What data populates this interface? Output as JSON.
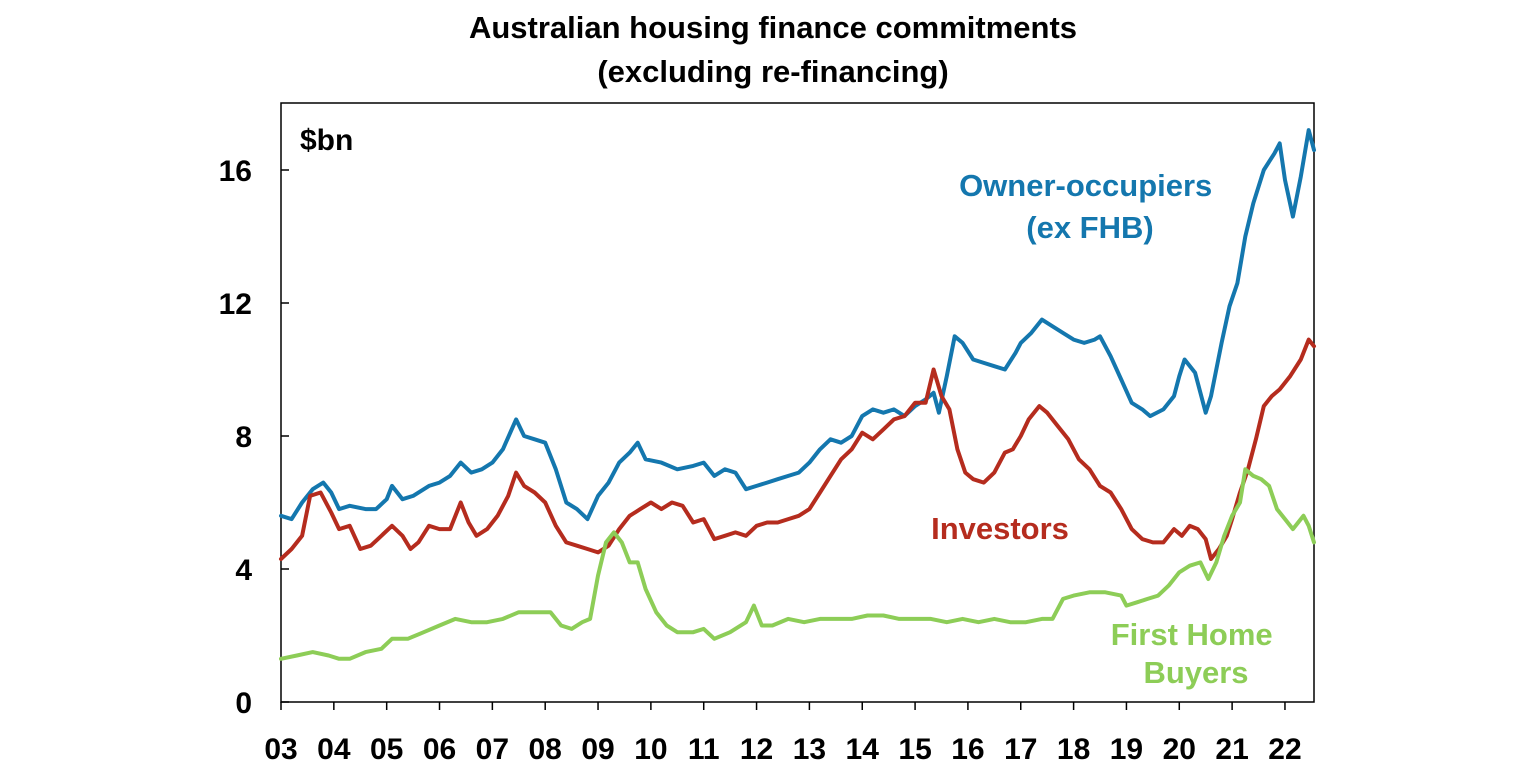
{
  "chart_data": {
    "type": "line",
    "title": "Australian housing finance commitments",
    "subtitle": "(excluding re-financing)",
    "ylabel": "$bn",
    "xlabel": "",
    "ylim": [
      0,
      18
    ],
    "yticks": [
      "0",
      "4",
      "8",
      "12",
      "16"
    ],
    "xticks": [
      "03",
      "04",
      "05",
      "06",
      "07",
      "08",
      "09",
      "10",
      "11",
      "12",
      "13",
      "14",
      "15",
      "16",
      "17",
      "18",
      "19",
      "20",
      "21",
      "22"
    ],
    "xlim": [
      2003.0,
      2022.5
    ],
    "grid": false,
    "legend": "inline labels",
    "series": [
      {
        "name": "Owner-occupiers (ex FHB)",
        "label_lines": [
          "Owner-occupiers",
          "(ex FHB)"
        ],
        "color": "#1477AE",
        "points": [
          [
            2003.0,
            5.6
          ],
          [
            2003.2,
            5.5
          ],
          [
            2003.4,
            6.0
          ],
          [
            2003.6,
            6.4
          ],
          [
            2003.8,
            6.6
          ],
          [
            2003.95,
            6.3
          ],
          [
            2004.1,
            5.8
          ],
          [
            2004.3,
            5.9
          ],
          [
            2004.6,
            5.8
          ],
          [
            2004.8,
            5.8
          ],
          [
            2005.0,
            6.1
          ],
          [
            2005.1,
            6.5
          ],
          [
            2005.3,
            6.1
          ],
          [
            2005.5,
            6.2
          ],
          [
            2005.8,
            6.5
          ],
          [
            2006.0,
            6.6
          ],
          [
            2006.2,
            6.8
          ],
          [
            2006.4,
            7.2
          ],
          [
            2006.6,
            6.9
          ],
          [
            2006.8,
            7.0
          ],
          [
            2007.0,
            7.2
          ],
          [
            2007.2,
            7.6
          ],
          [
            2007.45,
            8.5
          ],
          [
            2007.6,
            8.0
          ],
          [
            2007.8,
            7.9
          ],
          [
            2008.0,
            7.8
          ],
          [
            2008.2,
            7.0
          ],
          [
            2008.4,
            6.0
          ],
          [
            2008.6,
            5.8
          ],
          [
            2008.8,
            5.5
          ],
          [
            2009.0,
            6.2
          ],
          [
            2009.2,
            6.6
          ],
          [
            2009.4,
            7.2
          ],
          [
            2009.6,
            7.5
          ],
          [
            2009.75,
            7.8
          ],
          [
            2009.9,
            7.3
          ],
          [
            2010.2,
            7.2
          ],
          [
            2010.5,
            7.0
          ],
          [
            2010.8,
            7.1
          ],
          [
            2011.0,
            7.2
          ],
          [
            2011.2,
            6.8
          ],
          [
            2011.4,
            7.0
          ],
          [
            2011.6,
            6.9
          ],
          [
            2011.8,
            6.4
          ],
          [
            2012.0,
            6.5
          ],
          [
            2012.2,
            6.6
          ],
          [
            2012.4,
            6.7
          ],
          [
            2012.6,
            6.8
          ],
          [
            2012.8,
            6.9
          ],
          [
            2013.0,
            7.2
          ],
          [
            2013.2,
            7.6
          ],
          [
            2013.4,
            7.9
          ],
          [
            2013.6,
            7.8
          ],
          [
            2013.8,
            8.0
          ],
          [
            2014.0,
            8.6
          ],
          [
            2014.2,
            8.8
          ],
          [
            2014.4,
            8.7
          ],
          [
            2014.6,
            8.8
          ],
          [
            2014.8,
            8.6
          ],
          [
            2015.0,
            8.9
          ],
          [
            2015.2,
            9.1
          ],
          [
            2015.35,
            9.3
          ],
          [
            2015.45,
            8.7
          ],
          [
            2015.6,
            9.8
          ],
          [
            2015.75,
            11.0
          ],
          [
            2015.9,
            10.8
          ],
          [
            2016.1,
            10.3
          ],
          [
            2016.3,
            10.2
          ],
          [
            2016.5,
            10.1
          ],
          [
            2016.7,
            10.0
          ],
          [
            2016.9,
            10.5
          ],
          [
            2017.0,
            10.8
          ],
          [
            2017.2,
            11.1
          ],
          [
            2017.4,
            11.5
          ],
          [
            2017.6,
            11.3
          ],
          [
            2017.8,
            11.1
          ],
          [
            2018.0,
            10.9
          ],
          [
            2018.2,
            10.8
          ],
          [
            2018.4,
            10.9
          ],
          [
            2018.5,
            11.0
          ],
          [
            2018.7,
            10.4
          ],
          [
            2018.9,
            9.7
          ],
          [
            2019.1,
            9.0
          ],
          [
            2019.3,
            8.8
          ],
          [
            2019.45,
            8.6
          ],
          [
            2019.7,
            8.8
          ],
          [
            2019.9,
            9.2
          ],
          [
            2020.0,
            9.8
          ],
          [
            2020.1,
            10.3
          ],
          [
            2020.3,
            9.9
          ],
          [
            2020.5,
            8.7
          ],
          [
            2020.6,
            9.2
          ],
          [
            2020.8,
            10.8
          ],
          [
            2020.95,
            11.9
          ],
          [
            2021.1,
            12.6
          ],
          [
            2021.25,
            14.0
          ],
          [
            2021.4,
            15.0
          ],
          [
            2021.6,
            16.0
          ],
          [
            2021.8,
            16.5
          ],
          [
            2021.9,
            16.8
          ],
          [
            2022.0,
            15.7
          ],
          [
            2022.15,
            14.6
          ],
          [
            2022.3,
            15.8
          ],
          [
            2022.45,
            17.2
          ],
          [
            2022.55,
            16.6
          ]
        ]
      },
      {
        "name": "Investors",
        "label_lines": [
          "Investors"
        ],
        "color": "#B52C1E",
        "points": [
          [
            2003.0,
            4.3
          ],
          [
            2003.2,
            4.6
          ],
          [
            2003.4,
            5.0
          ],
          [
            2003.55,
            6.2
          ],
          [
            2003.75,
            6.3
          ],
          [
            2003.95,
            5.7
          ],
          [
            2004.1,
            5.2
          ],
          [
            2004.3,
            5.3
          ],
          [
            2004.5,
            4.6
          ],
          [
            2004.7,
            4.7
          ],
          [
            2004.9,
            5.0
          ],
          [
            2005.1,
            5.3
          ],
          [
            2005.3,
            5.0
          ],
          [
            2005.45,
            4.6
          ],
          [
            2005.6,
            4.8
          ],
          [
            2005.8,
            5.3
          ],
          [
            2006.0,
            5.2
          ],
          [
            2006.2,
            5.2
          ],
          [
            2006.4,
            6.0
          ],
          [
            2006.55,
            5.4
          ],
          [
            2006.7,
            5.0
          ],
          [
            2006.9,
            5.2
          ],
          [
            2007.1,
            5.6
          ],
          [
            2007.3,
            6.2
          ],
          [
            2007.45,
            6.9
          ],
          [
            2007.6,
            6.5
          ],
          [
            2007.8,
            6.3
          ],
          [
            2008.0,
            6.0
          ],
          [
            2008.2,
            5.3
          ],
          [
            2008.4,
            4.8
          ],
          [
            2008.6,
            4.7
          ],
          [
            2008.8,
            4.6
          ],
          [
            2009.0,
            4.5
          ],
          [
            2009.2,
            4.7
          ],
          [
            2009.4,
            5.2
          ],
          [
            2009.6,
            5.6
          ],
          [
            2009.8,
            5.8
          ],
          [
            2010.0,
            6.0
          ],
          [
            2010.2,
            5.8
          ],
          [
            2010.4,
            6.0
          ],
          [
            2010.6,
            5.9
          ],
          [
            2010.8,
            5.4
          ],
          [
            2011.0,
            5.5
          ],
          [
            2011.2,
            4.9
          ],
          [
            2011.4,
            5.0
          ],
          [
            2011.6,
            5.1
          ],
          [
            2011.8,
            5.0
          ],
          [
            2012.0,
            5.3
          ],
          [
            2012.2,
            5.4
          ],
          [
            2012.4,
            5.4
          ],
          [
            2012.6,
            5.5
          ],
          [
            2012.8,
            5.6
          ],
          [
            2013.0,
            5.8
          ],
          [
            2013.2,
            6.3
          ],
          [
            2013.4,
            6.8
          ],
          [
            2013.6,
            7.3
          ],
          [
            2013.8,
            7.6
          ],
          [
            2014.0,
            8.1
          ],
          [
            2014.2,
            7.9
          ],
          [
            2014.4,
            8.2
          ],
          [
            2014.6,
            8.5
          ],
          [
            2014.8,
            8.6
          ],
          [
            2015.0,
            9.0
          ],
          [
            2015.2,
            9.0
          ],
          [
            2015.35,
            10.0
          ],
          [
            2015.5,
            9.2
          ],
          [
            2015.65,
            8.8
          ],
          [
            2015.8,
            7.6
          ],
          [
            2015.95,
            6.9
          ],
          [
            2016.1,
            6.7
          ],
          [
            2016.3,
            6.6
          ],
          [
            2016.5,
            6.9
          ],
          [
            2016.7,
            7.5
          ],
          [
            2016.85,
            7.6
          ],
          [
            2017.0,
            8.0
          ],
          [
            2017.15,
            8.5
          ],
          [
            2017.35,
            8.9
          ],
          [
            2017.5,
            8.7
          ],
          [
            2017.7,
            8.3
          ],
          [
            2017.9,
            7.9
          ],
          [
            2018.1,
            7.3
          ],
          [
            2018.3,
            7.0
          ],
          [
            2018.5,
            6.5
          ],
          [
            2018.7,
            6.3
          ],
          [
            2018.9,
            5.8
          ],
          [
            2019.1,
            5.2
          ],
          [
            2019.3,
            4.9
          ],
          [
            2019.5,
            4.8
          ],
          [
            2019.7,
            4.8
          ],
          [
            2019.9,
            5.2
          ],
          [
            2020.05,
            5.0
          ],
          [
            2020.2,
            5.3
          ],
          [
            2020.35,
            5.2
          ],
          [
            2020.5,
            4.9
          ],
          [
            2020.6,
            4.3
          ],
          [
            2020.75,
            4.6
          ],
          [
            2020.9,
            5.0
          ],
          [
            2021.0,
            5.5
          ],
          [
            2021.15,
            6.3
          ],
          [
            2021.3,
            7.0
          ],
          [
            2021.45,
            7.9
          ],
          [
            2021.6,
            8.9
          ],
          [
            2021.75,
            9.2
          ],
          [
            2021.9,
            9.4
          ],
          [
            2022.1,
            9.8
          ],
          [
            2022.3,
            10.3
          ],
          [
            2022.45,
            10.9
          ],
          [
            2022.55,
            10.7
          ]
        ]
      },
      {
        "name": "First Home Buyers",
        "label_lines": [
          "First Home",
          "Buyers"
        ],
        "color": "#8DCD57",
        "points": [
          [
            2003.0,
            1.3
          ],
          [
            2003.3,
            1.4
          ],
          [
            2003.6,
            1.5
          ],
          [
            2003.9,
            1.4
          ],
          [
            2004.1,
            1.3
          ],
          [
            2004.3,
            1.3
          ],
          [
            2004.6,
            1.5
          ],
          [
            2004.9,
            1.6
          ],
          [
            2005.1,
            1.9
          ],
          [
            2005.4,
            1.9
          ],
          [
            2005.7,
            2.1
          ],
          [
            2006.0,
            2.3
          ],
          [
            2006.3,
            2.5
          ],
          [
            2006.6,
            2.4
          ],
          [
            2006.9,
            2.4
          ],
          [
            2007.2,
            2.5
          ],
          [
            2007.5,
            2.7
          ],
          [
            2007.8,
            2.7
          ],
          [
            2008.1,
            2.7
          ],
          [
            2008.3,
            2.3
          ],
          [
            2008.5,
            2.2
          ],
          [
            2008.7,
            2.4
          ],
          [
            2008.85,
            2.5
          ],
          [
            2009.0,
            3.8
          ],
          [
            2009.15,
            4.8
          ],
          [
            2009.3,
            5.1
          ],
          [
            2009.45,
            4.8
          ],
          [
            2009.6,
            4.2
          ],
          [
            2009.75,
            4.2
          ],
          [
            2009.9,
            3.4
          ],
          [
            2010.1,
            2.7
          ],
          [
            2010.3,
            2.3
          ],
          [
            2010.5,
            2.1
          ],
          [
            2010.8,
            2.1
          ],
          [
            2011.0,
            2.2
          ],
          [
            2011.2,
            1.9
          ],
          [
            2011.5,
            2.1
          ],
          [
            2011.8,
            2.4
          ],
          [
            2011.95,
            2.9
          ],
          [
            2012.1,
            2.3
          ],
          [
            2012.3,
            2.3
          ],
          [
            2012.6,
            2.5
          ],
          [
            2012.9,
            2.4
          ],
          [
            2013.2,
            2.5
          ],
          [
            2013.5,
            2.5
          ],
          [
            2013.8,
            2.5
          ],
          [
            2014.1,
            2.6
          ],
          [
            2014.4,
            2.6
          ],
          [
            2014.7,
            2.5
          ],
          [
            2015.0,
            2.5
          ],
          [
            2015.3,
            2.5
          ],
          [
            2015.6,
            2.4
          ],
          [
            2015.9,
            2.5
          ],
          [
            2016.2,
            2.4
          ],
          [
            2016.5,
            2.5
          ],
          [
            2016.8,
            2.4
          ],
          [
            2017.1,
            2.4
          ],
          [
            2017.4,
            2.5
          ],
          [
            2017.6,
            2.5
          ],
          [
            2017.8,
            3.1
          ],
          [
            2018.0,
            3.2
          ],
          [
            2018.3,
            3.3
          ],
          [
            2018.6,
            3.3
          ],
          [
            2018.9,
            3.2
          ],
          [
            2019.0,
            2.9
          ],
          [
            2019.2,
            3.0
          ],
          [
            2019.4,
            3.1
          ],
          [
            2019.6,
            3.2
          ],
          [
            2019.8,
            3.5
          ],
          [
            2020.0,
            3.9
          ],
          [
            2020.2,
            4.1
          ],
          [
            2020.4,
            4.2
          ],
          [
            2020.55,
            3.7
          ],
          [
            2020.7,
            4.2
          ],
          [
            2020.85,
            5.0
          ],
          [
            2021.0,
            5.6
          ],
          [
            2021.15,
            6.0
          ],
          [
            2021.25,
            7.0
          ],
          [
            2021.4,
            6.8
          ],
          [
            2021.55,
            6.7
          ],
          [
            2021.7,
            6.5
          ],
          [
            2021.85,
            5.8
          ],
          [
            2022.0,
            5.5
          ],
          [
            2022.15,
            5.2
          ],
          [
            2022.35,
            5.6
          ],
          [
            2022.45,
            5.3
          ],
          [
            2022.55,
            4.8
          ]
        ]
      }
    ]
  }
}
